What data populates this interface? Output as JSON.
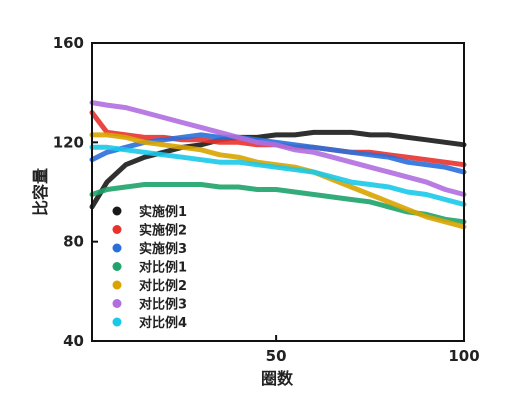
{
  "chart_data": {
    "type": "line",
    "title": "",
    "xlabel": "圈数",
    "ylabel": "比容量",
    "xlim": [
      1,
      100
    ],
    "ylim": [
      40,
      160
    ],
    "x_ticks": [
      50,
      100
    ],
    "y_ticks": [
      40,
      80,
      120,
      160
    ],
    "grid": false,
    "legend_position": "bottom-left",
    "x": [
      1,
      5,
      10,
      15,
      20,
      25,
      30,
      35,
      40,
      45,
      50,
      55,
      60,
      65,
      70,
      75,
      80,
      85,
      90,
      95,
      100
    ],
    "series": [
      {
        "name": "实施例1",
        "color": "#1a1a1a",
        "values": [
          94,
          104,
          111,
          114,
          116,
          118,
          119,
          121,
          122,
          122,
          123,
          123,
          124,
          124,
          124,
          123,
          123,
          122,
          121,
          120,
          119
        ]
      },
      {
        "name": "实施例2",
        "color": "#e8322e",
        "values": [
          132,
          124,
          123,
          122,
          122,
          121,
          121,
          120,
          120,
          119,
          119,
          118,
          118,
          117,
          116,
          116,
          115,
          114,
          113,
          112,
          111
        ]
      },
      {
        "name": "实施例3",
        "color": "#2a6fdb",
        "values": [
          113,
          116,
          118,
          120,
          121,
          122,
          123,
          122,
          122,
          121,
          120,
          119,
          118,
          117,
          116,
          115,
          114,
          112,
          111,
          110,
          108
        ]
      },
      {
        "name": "对比例1",
        "color": "#1ea36b",
        "values": [
          99,
          101,
          102,
          103,
          103,
          103,
          103,
          102,
          102,
          101,
          101,
          100,
          99,
          98,
          97,
          96,
          94,
          92,
          91,
          89,
          88
        ]
      },
      {
        "name": "对比例2",
        "color": "#d9a400",
        "values": [
          123,
          123,
          122,
          120,
          119,
          118,
          117,
          115,
          114,
          112,
          111,
          110,
          108,
          105,
          102,
          99,
          96,
          93,
          90,
          88,
          86
        ]
      },
      {
        "name": "对比例3",
        "color": "#b06ee0",
        "values": [
          136,
          135,
          134,
          132,
          130,
          128,
          126,
          124,
          122,
          120,
          119,
          117,
          116,
          114,
          112,
          110,
          108,
          106,
          104,
          101,
          99
        ]
      },
      {
        "name": "对比例4",
        "color": "#19c9e8",
        "values": [
          118,
          118,
          117,
          116,
          115,
          114,
          113,
          112,
          112,
          111,
          110,
          109,
          108,
          106,
          104,
          103,
          102,
          100,
          99,
          97,
          95
        ]
      }
    ]
  }
}
